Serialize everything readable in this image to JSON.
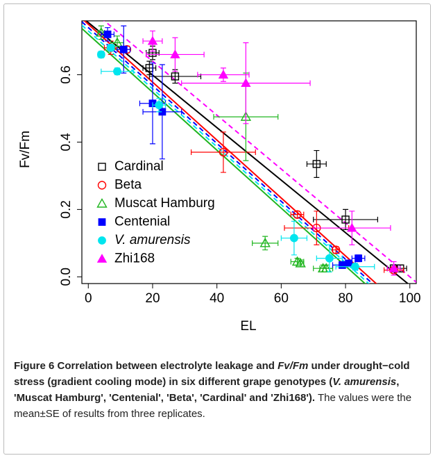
{
  "chart_data": {
    "type": "scatter",
    "x_label": "EL",
    "y_label": "Fv/Fm",
    "xlim": [
      -2,
      102
    ],
    "ylim": [
      -0.02,
      0.76
    ],
    "xticks": [
      0,
      20,
      40,
      60,
      80,
      100
    ],
    "yticks": [
      {
        "value": 0,
        "label": "0.0"
      },
      0.2,
      0.4,
      0.6
    ],
    "legend": "left",
    "series": [
      {
        "name": "Cardinal",
        "color": "#000000",
        "marker": "square-open",
        "x": [
          20,
          19,
          27,
          71,
          80,
          95,
          97
        ],
        "values": [
          0.665,
          0.62,
          0.595,
          0.335,
          0.17,
          0.025,
          0.025
        ],
        "xerr": [
          2,
          2,
          8,
          3,
          10,
          2,
          2
        ],
        "yerr": [
          0.02,
          0.02,
          0.02,
          0.04,
          0.03,
          0.01,
          0.01
        ],
        "fit": {
          "intercept": 0.755,
          "slope": -0.0078,
          "dashed": false
        }
      },
      {
        "name": "Beta",
        "color": "#ff0000",
        "marker": "circle-open",
        "x": [
          7,
          12,
          42,
          65,
          71,
          77,
          95
        ],
        "values": [
          0.68,
          0.675,
          0.37,
          0.185,
          0.145,
          0.08,
          0.02
        ],
        "xerr": [
          2,
          1,
          10,
          2,
          10,
          1,
          3
        ],
        "yerr": [
          0.02,
          0.01,
          0.06,
          0.01,
          0.05,
          0.01,
          0.01
        ],
        "fit": {
          "intercept": 0.75,
          "slope": -0.0086,
          "dashed": false
        }
      },
      {
        "name": "Muscat Hamburg",
        "color": "#1fb51f",
        "marker": "triangle-open",
        "x": [
          4,
          9,
          49,
          55,
          65,
          66,
          73,
          74
        ],
        "values": [
          0.725,
          0.695,
          0.475,
          0.1,
          0.045,
          0.04,
          0.025,
          0.025
        ],
        "xerr": [
          1,
          2,
          10,
          4,
          2,
          1,
          3,
          2
        ],
        "yerr": [
          0.02,
          0.02,
          0.13,
          0.02,
          0.01,
          0.01,
          0.01,
          0.01
        ],
        "fit": {
          "intercept": 0.72,
          "slope": -0.0086,
          "dashed": false
        }
      },
      {
        "name": "Centenial",
        "color": "#0000ff",
        "marker": "square",
        "x": [
          6,
          11,
          20,
          23,
          79,
          81,
          84
        ],
        "values": [
          0.72,
          0.675,
          0.515,
          0.49,
          0.035,
          0.04,
          0.055
        ],
        "xerr": [
          2,
          2,
          4,
          6,
          3,
          2,
          2
        ],
        "yerr": [
          0.02,
          0.07,
          0.12,
          0.14,
          0.01,
          0.01,
          0.01
        ],
        "fit": {
          "intercept": 0.74,
          "slope": -0.0086,
          "dashed": true
        }
      },
      {
        "name": "V. amurensis",
        "name_italic": true,
        "color": "#00e5ee",
        "marker": "circle",
        "x": [
          4,
          7,
          9,
          22,
          64,
          75,
          83
        ],
        "values": [
          0.66,
          0.68,
          0.61,
          0.51,
          0.115,
          0.055,
          0.03
        ],
        "xerr": [
          1,
          1,
          5,
          2,
          4,
          4,
          6
        ],
        "yerr": [
          0.01,
          0.01,
          0.01,
          0.02,
          0.05,
          0.04,
          0.01
        ],
        "fit": {
          "intercept": 0.73,
          "slope": -0.0086,
          "dashed": true
        }
      },
      {
        "name": "Zhi168",
        "color": "#ff00ff",
        "marker": "triangle",
        "x": [
          20,
          27,
          42,
          49,
          82,
          95
        ],
        "values": [
          0.7,
          0.66,
          0.6,
          0.575,
          0.145,
          0.025
        ],
        "xerr": [
          3,
          9,
          8,
          20,
          12,
          2
        ],
        "yerr": [
          0.03,
          0.05,
          0.02,
          0.12,
          0.05,
          0.02
        ],
        "fit": {
          "intercept": 0.8,
          "slope": -0.008,
          "dashed": true
        }
      }
    ]
  },
  "caption": [
    {
      "text": "Figure 6",
      "bold": true
    },
    {
      "text": " Correlation between electrolyte leakage and ",
      "bold": true
    },
    {
      "text": "Fv/Fm",
      "bold": true,
      "italic": true
    },
    {
      "text": " under drought−cold stress (gradient cooling mode) in six different grape genotypes (",
      "bold": true
    },
    {
      "text": "V. amurensis",
      "bold": true,
      "italic": true
    },
    {
      "text": ", 'Muscat Hamburg', 'Centenial', 'Beta', 'Cardinal' and 'Zhi168').",
      "bold": true
    },
    {
      "text": " The values were the mean±SE of results from three replicates."
    }
  ]
}
